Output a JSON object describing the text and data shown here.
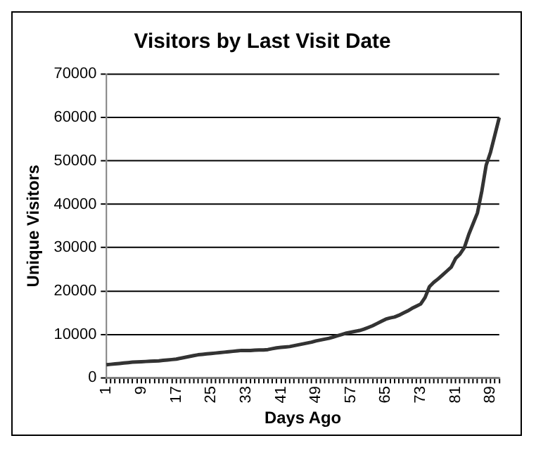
{
  "chart_data": {
    "type": "line",
    "title": "Visitors by Last Visit Date",
    "xlabel": "Days Ago",
    "ylabel": "Unique Visitors",
    "categories": [
      "1",
      null,
      null,
      null,
      null,
      null,
      null,
      null,
      "9",
      null,
      null,
      null,
      null,
      null,
      null,
      null,
      "17",
      null,
      null,
      null,
      null,
      null,
      null,
      null,
      "25",
      null,
      null,
      null,
      null,
      null,
      null,
      null,
      "33",
      null,
      null,
      null,
      null,
      null,
      null,
      null,
      "41",
      null,
      null,
      null,
      null,
      null,
      null,
      null,
      "49",
      null,
      null,
      null,
      null,
      null,
      null,
      null,
      "57",
      null,
      null,
      null,
      null,
      null,
      null,
      null,
      "65",
      null,
      null,
      null,
      null,
      null,
      null,
      null,
      "73",
      null,
      null,
      null,
      null,
      null,
      null,
      null,
      "81",
      null,
      null,
      null,
      null,
      null,
      null,
      null,
      "89",
      null,
      null
    ],
    "series": [
      {
        "color": "#333333",
        "values": [
          3000,
          3100,
          3200,
          3300,
          3400,
          3500,
          3600,
          3650,
          3700,
          3750,
          3800,
          3850,
          3900,
          4000,
          4100,
          4200,
          4300,
          4500,
          4700,
          4900,
          5100,
          5300,
          5400,
          5500,
          5600,
          5700,
          5800,
          5900,
          6000,
          6100,
          6200,
          6300,
          6300,
          6300,
          6350,
          6400,
          6400,
          6500,
          6700,
          6900,
          7000,
          7100,
          7200,
          7400,
          7600,
          7800,
          8000,
          8200,
          8500,
          8700,
          8900,
          9100,
          9400,
          9700,
          10000,
          10300,
          10500,
          10700,
          10900,
          11200,
          11600,
          12000,
          12500,
          13000,
          13500,
          13800,
          14000,
          14400,
          14900,
          15400,
          16000,
          16500,
          17000,
          18500,
          21000,
          22000,
          22800,
          23700,
          24600,
          25500,
          27500,
          28500,
          30000,
          33000,
          35500,
          38000,
          43000,
          49000,
          52000,
          56000,
          60000
        ]
      }
    ],
    "ylim": [
      0,
      70000
    ],
    "yticks": [
      0,
      10000,
      20000,
      30000,
      40000,
      50000,
      60000,
      70000
    ],
    "grid": "y",
    "legend": false,
    "marker": "none",
    "line_style": "solid"
  }
}
